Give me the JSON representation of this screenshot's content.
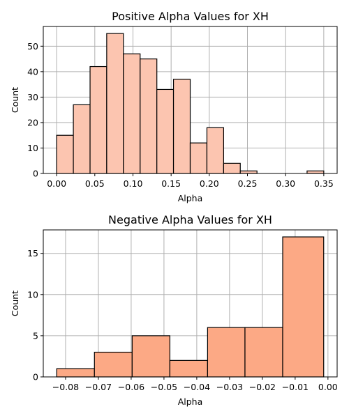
{
  "chart_data": [
    {
      "type": "bar",
      "title": "Positive Alpha Values for XH",
      "xlabel": "Alpha",
      "ylabel": "Count",
      "bin_edges": [
        0.0,
        0.0219,
        0.0438,
        0.0656,
        0.0875,
        0.1094,
        0.1313,
        0.1531,
        0.175,
        0.1969,
        0.2188,
        0.2406,
        0.2625,
        0.2844,
        0.3063,
        0.3281,
        0.35
      ],
      "values": [
        15,
        27,
        42,
        55,
        47,
        45,
        33,
        37,
        12,
        18,
        4,
        1,
        0,
        0,
        0,
        1
      ],
      "xlim": [
        -0.0175,
        0.3675
      ],
      "ylim": [
        0,
        57.75
      ],
      "xticks": [
        0.0,
        0.05,
        0.1,
        0.15,
        0.2,
        0.25,
        0.3,
        0.35
      ],
      "xtick_labels": [
        "0.00",
        "0.05",
        "0.10",
        "0.15",
        "0.20",
        "0.25",
        "0.30",
        "0.35"
      ],
      "yticks": [
        0,
        10,
        20,
        30,
        40,
        50
      ],
      "ytick_labels": [
        "0",
        "10",
        "20",
        "30",
        "40",
        "50"
      ],
      "color": "#fcc5b0",
      "grid": true
    },
    {
      "type": "bar",
      "title": "Negative Alpha Values for XH",
      "xlabel": "Alpha",
      "ylabel": "Count",
      "bin_edges": [
        -0.0827,
        -0.0712,
        -0.0597,
        -0.0482,
        -0.0367,
        -0.0253,
        -0.0138,
        -0.0013
      ],
      "values": [
        1,
        3,
        5,
        2,
        6,
        6,
        17
      ],
      "xlim": [
        -0.0868,
        0.0028
      ],
      "ylim": [
        0,
        17.85
      ],
      "xticks": [
        -0.08,
        -0.07,
        -0.06,
        -0.05,
        -0.04,
        -0.03,
        -0.02,
        -0.01,
        0.0
      ],
      "xtick_labels": [
        "−0.08",
        "−0.07",
        "−0.06",
        "−0.05",
        "−0.04",
        "−0.03",
        "−0.02",
        "−0.01",
        "0.00"
      ],
      "yticks": [
        0,
        5,
        10,
        15
      ],
      "ytick_labels": [
        "0",
        "5",
        "10",
        "15"
      ],
      "color": "#fca985",
      "grid": true
    }
  ]
}
